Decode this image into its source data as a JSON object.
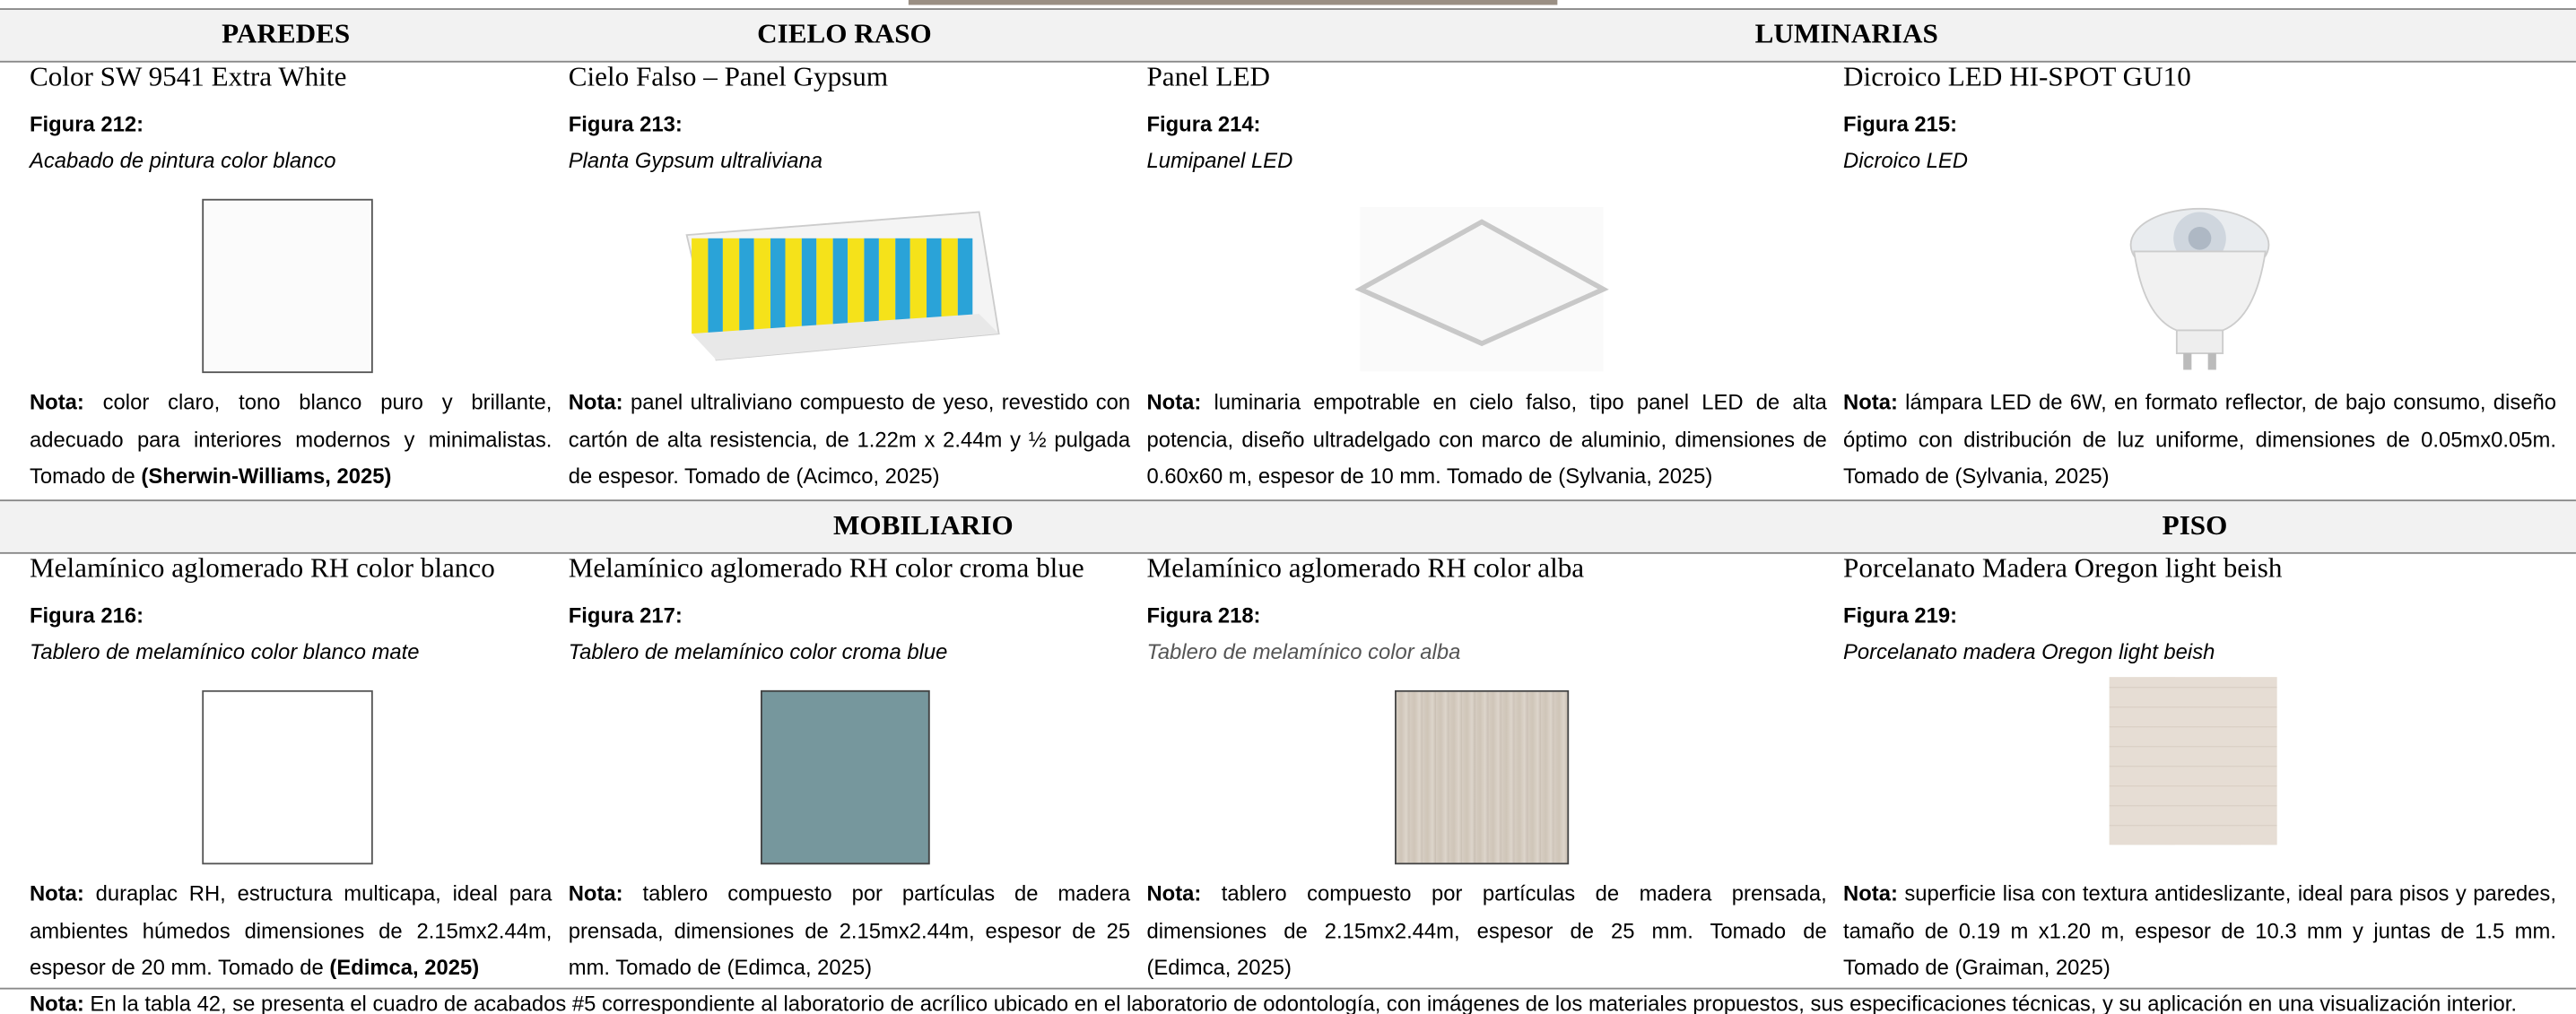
{
  "sections": [
    {
      "headers": [
        {
          "label": "PAREDES",
          "span": 1
        },
        {
          "label": "CIELO RASO",
          "span": 1
        },
        {
          "label": "LUMINARIAS",
          "span": 2
        }
      ],
      "items": [
        {
          "title": "Color SW 9541 Extra White",
          "figure": "Figura 212:",
          "caption": "Acabado de pintura color blanco",
          "note_label": "Nota:",
          "note_text": "color claro, tono blanco puro y brillante, adecuado para interiores modernos y minimalistas. Tomado de ",
          "note_bold": "(Sherwin-Williams, 2025)"
        },
        {
          "title": "Cielo Falso – Panel Gypsum",
          "figure": "Figura 213:",
          "caption": "Planta Gypsum ultraliviana",
          "note_label": "Nota:",
          "note_text": "panel ultraliviano compuesto de yeso, revestido con cartón de alta resistencia, de 1.22m x 2.44m y ½ pulgada de espesor. Tomado de (Acimco, 2025)"
        },
        {
          "title": "Panel LED",
          "figure": "Figura 214:",
          "caption": "Lumipanel LED",
          "note_label": "Nota:",
          "note_text": "luminaria empotrable en cielo falso, tipo panel LED de alta potencia, diseño ultradelgado con marco de aluminio, dimensiones de 0.60x60 m, espesor de 10 mm. Tomado de (Sylvania, 2025)"
        },
        {
          "title": "Dicroico LED HI-SPOT GU10",
          "figure": "Figura 215:",
          "caption": "Dicroico LED",
          "note_label": "Nota:",
          "note_text": "lámpara LED  de 6W, en formato reflector, de bajo consumo, diseño óptimo con distribución de luz uniforme, dimensiones de 0.05mx0.05m. Tomado de (Sylvania, 2025)"
        }
      ]
    },
    {
      "headers": [
        {
          "label": "MOBILIARIO",
          "span": 3
        },
        {
          "label": "PISO",
          "span": 1
        }
      ],
      "items": [
        {
          "title": "Melamínico aglomerado RH color blanco",
          "figure": "Figura 216:",
          "caption": "Tablero de melamínico color blanco mate",
          "note_label": "Nota:",
          "note_text": "duraplac RH, estructura multicapa, ideal para ambientes húmedos dimensiones de 2.15mx2.44m, espesor de 20 mm. Tomado de ",
          "note_bold": "(Edimca, 2025)"
        },
        {
          "title": "Melamínico aglomerado RH color croma blue",
          "figure": "Figura 217:",
          "caption": "Tablero de melamínico color croma blue",
          "note_label": "Nota:",
          "note_text": "tablero compuesto por partículas de madera prensada, dimensiones de 2.15mx2.44m, espesor de 25 mm. Tomado de  (Edimca, 2025)"
        },
        {
          "title": "Melamínico aglomerado RH color alba",
          "figure": "Figura 218:",
          "caption": "Tablero de melamínico color alba",
          "note_label": "Nota:",
          "note_text": "tablero compuesto por partículas de madera prensada, dimensiones de 2.15mx2.44m, espesor de 25 mm. Tomado de (Edimca, 2025)"
        },
        {
          "title": "Porcelanato Madera Oregon light beish",
          "figure": "Figura 219:",
          "caption": "Porcelanato madera Oregon light  beish",
          "note_label": "Nota:",
          "note_text": "superficie lisa con textura antideslizante, ideal para pisos y paredes, tamaño de 0.19 m x1.20 m, espesor de 10.3 mm y juntas de 1.5 mm. Tomado de (Graiman, 2025)"
        }
      ]
    }
  ],
  "footer": {
    "label": "Nota:",
    "text": " En la tabla 42, se presenta el cuadro de acabados #5 correspondiente al laboratorio de acrílico ubicado en el laboratorio de odontología, con imágenes de los materiales propuestos, sus especificaciones técnicas, y su aplicación en una visualización interior."
  }
}
